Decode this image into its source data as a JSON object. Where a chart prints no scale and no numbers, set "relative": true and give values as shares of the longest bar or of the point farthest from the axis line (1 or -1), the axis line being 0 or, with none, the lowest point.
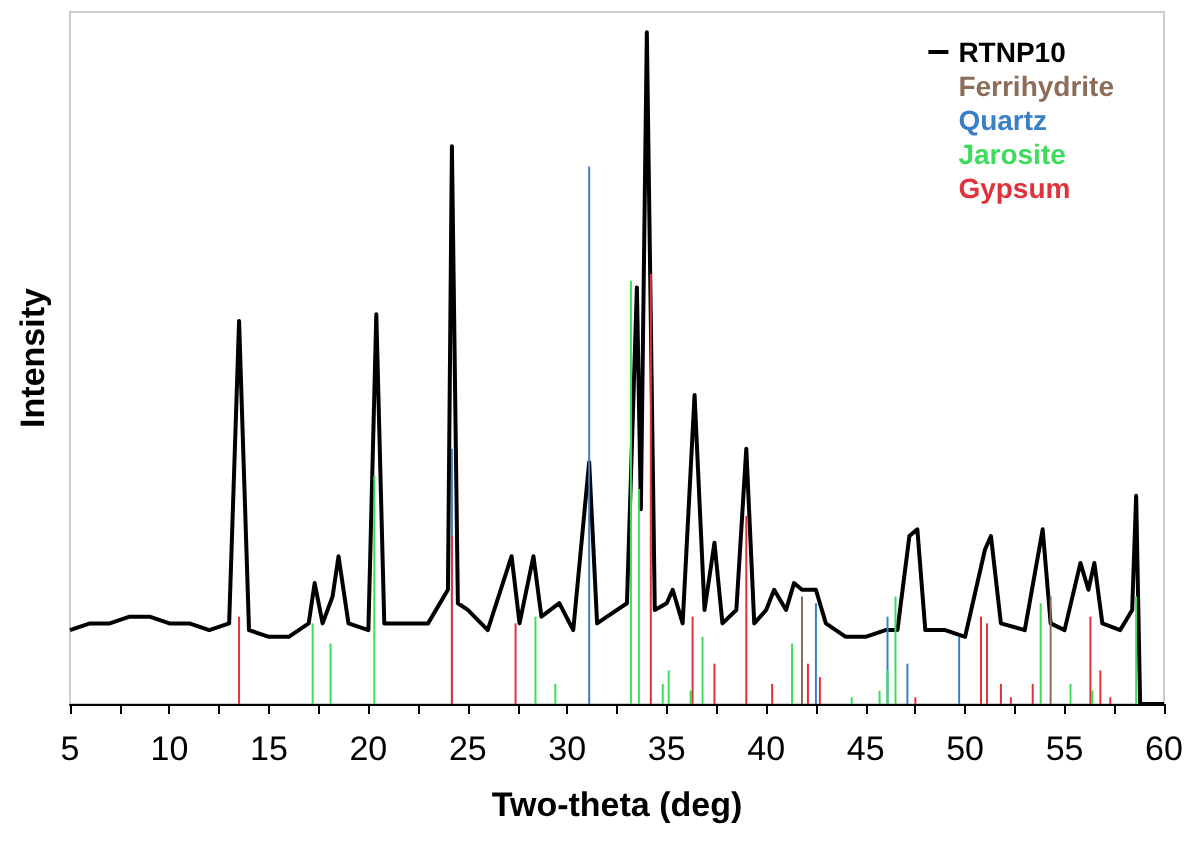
{
  "chart_data": {
    "type": "line",
    "xlabel": "Two-theta (deg)",
    "ylabel": "Intensity",
    "relative": true,
    "legend": "top right",
    "grid": false,
    "marker": "none",
    "xlim": [
      5,
      60
    ],
    "xticks": [
      5,
      {
        "value": 7.5,
        "label": null
      },
      10,
      {
        "value": 12.5,
        "label": null
      },
      15,
      {
        "value": 17.5,
        "label": null
      },
      20,
      {
        "value": 22.5,
        "label": null
      },
      25,
      {
        "value": 27.5,
        "label": null
      },
      30,
      {
        "value": 32.5,
        "label": null
      },
      35,
      {
        "value": 37.5,
        "label": null
      },
      40,
      {
        "value": 42.5,
        "label": null
      },
      45,
      {
        "value": 47.5,
        "label": null
      },
      50,
      {
        "value": 52.5,
        "label": null
      },
      55,
      {
        "value": 57.5,
        "label": null
      },
      60
    ],
    "series": [
      {
        "name": "RTNP10",
        "color": "#000000",
        "x": [
          5,
          6,
          7,
          8,
          9,
          10,
          11,
          12,
          13,
          13.5,
          14,
          15,
          16,
          17,
          17.3,
          17.7,
          18.2,
          18.5,
          19,
          20,
          20.4,
          20.8,
          22,
          23,
          24,
          24.2,
          24.5,
          25,
          26,
          27.2,
          27.6,
          28.3,
          28.7,
          29.6,
          30.3,
          31.1,
          31.5,
          32,
          33,
          33.5,
          33.7,
          34,
          34.4,
          35,
          35.3,
          35.8,
          36.4,
          36.9,
          37.4,
          37.8,
          38.5,
          39,
          39.4,
          40,
          40.4,
          41,
          41.4,
          41.8,
          42.5,
          43,
          44,
          45,
          46,
          46.6,
          47.2,
          47.6,
          48,
          49,
          50,
          51,
          51.3,
          51.8,
          53,
          53.9,
          54.3,
          55,
          55.8,
          56.2,
          56.5,
          56.9,
          57.8,
          58.4,
          58.6,
          58.8,
          60
        ],
        "values": [
          0.11,
          0.12,
          0.12,
          0.13,
          0.13,
          0.12,
          0.12,
          0.11,
          0.12,
          0.57,
          0.11,
          0.1,
          0.1,
          0.12,
          0.18,
          0.12,
          0.16,
          0.22,
          0.12,
          0.11,
          0.58,
          0.12,
          0.12,
          0.12,
          0.17,
          0.83,
          0.15,
          0.14,
          0.11,
          0.22,
          0.12,
          0.22,
          0.13,
          0.15,
          0.11,
          0.36,
          0.12,
          0.13,
          0.15,
          0.62,
          0.29,
          1,
          0.14,
          0.15,
          0.17,
          0.12,
          0.46,
          0.14,
          0.24,
          0.12,
          0.14,
          0.38,
          0.12,
          0.14,
          0.17,
          0.14,
          0.18,
          0.17,
          0.17,
          0.12,
          0.1,
          0.1,
          0.11,
          0.11,
          0.25,
          0.26,
          0.11,
          0.11,
          0.1,
          0.23,
          0.25,
          0.12,
          0.11,
          0.26,
          0.12,
          0.11,
          0.21,
          0.17,
          0.21,
          0.12,
          0.11,
          0.14,
          0.31,
          0,
          0
        ]
      },
      {
        "name": "Ferrihydrite",
        "type": "bar",
        "color": "#8c6d5a",
        "x": [
          41.8,
          54.3
        ],
        "values": [
          0.16,
          0.16
        ]
      },
      {
        "name": "Quartz",
        "type": "bar",
        "color": "#3a7fc4",
        "x": [
          24.2,
          31.1,
          42.5,
          46.1,
          47.1,
          49.7
        ],
        "values": [
          0.38,
          0.8,
          0.15,
          0.13,
          0.06,
          0.1
        ]
      },
      {
        "name": "Jarosite",
        "type": "bar",
        "color": "#3ddc5a",
        "x": [
          17.2,
          18.1,
          20.3,
          28.4,
          29.4,
          33.2,
          33.6,
          34.8,
          35.1,
          36.2,
          36.8,
          41.3,
          44.3,
          45.7,
          46.1,
          46.5,
          53.8,
          55.3,
          56.4,
          58.6
        ],
        "values": [
          0.12,
          0.09,
          0.34,
          0.13,
          0.03,
          0.63,
          0.32,
          0.03,
          0.05,
          0.02,
          0.1,
          0.09,
          0.01,
          0.02,
          0.05,
          0.16,
          0.15,
          0.03,
          0.02,
          0.16
        ]
      },
      {
        "name": "Gypsum",
        "type": "bar",
        "color": "#e0323a",
        "x": [
          13.5,
          24.2,
          27.4,
          34.2,
          36.3,
          37.4,
          39,
          40.3,
          42.1,
          42.7,
          47.5,
          50.8,
          51.1,
          51.8,
          52.3,
          53.4,
          56.3,
          56.8,
          57.3
        ],
        "values": [
          0.13,
          0.25,
          0.12,
          0.64,
          0.13,
          0.06,
          0.28,
          0.03,
          0.06,
          0.04,
          0.01,
          0.13,
          0.12,
          0.03,
          0.01,
          0.03,
          0.13,
          0.05,
          0.01
        ]
      }
    ]
  }
}
